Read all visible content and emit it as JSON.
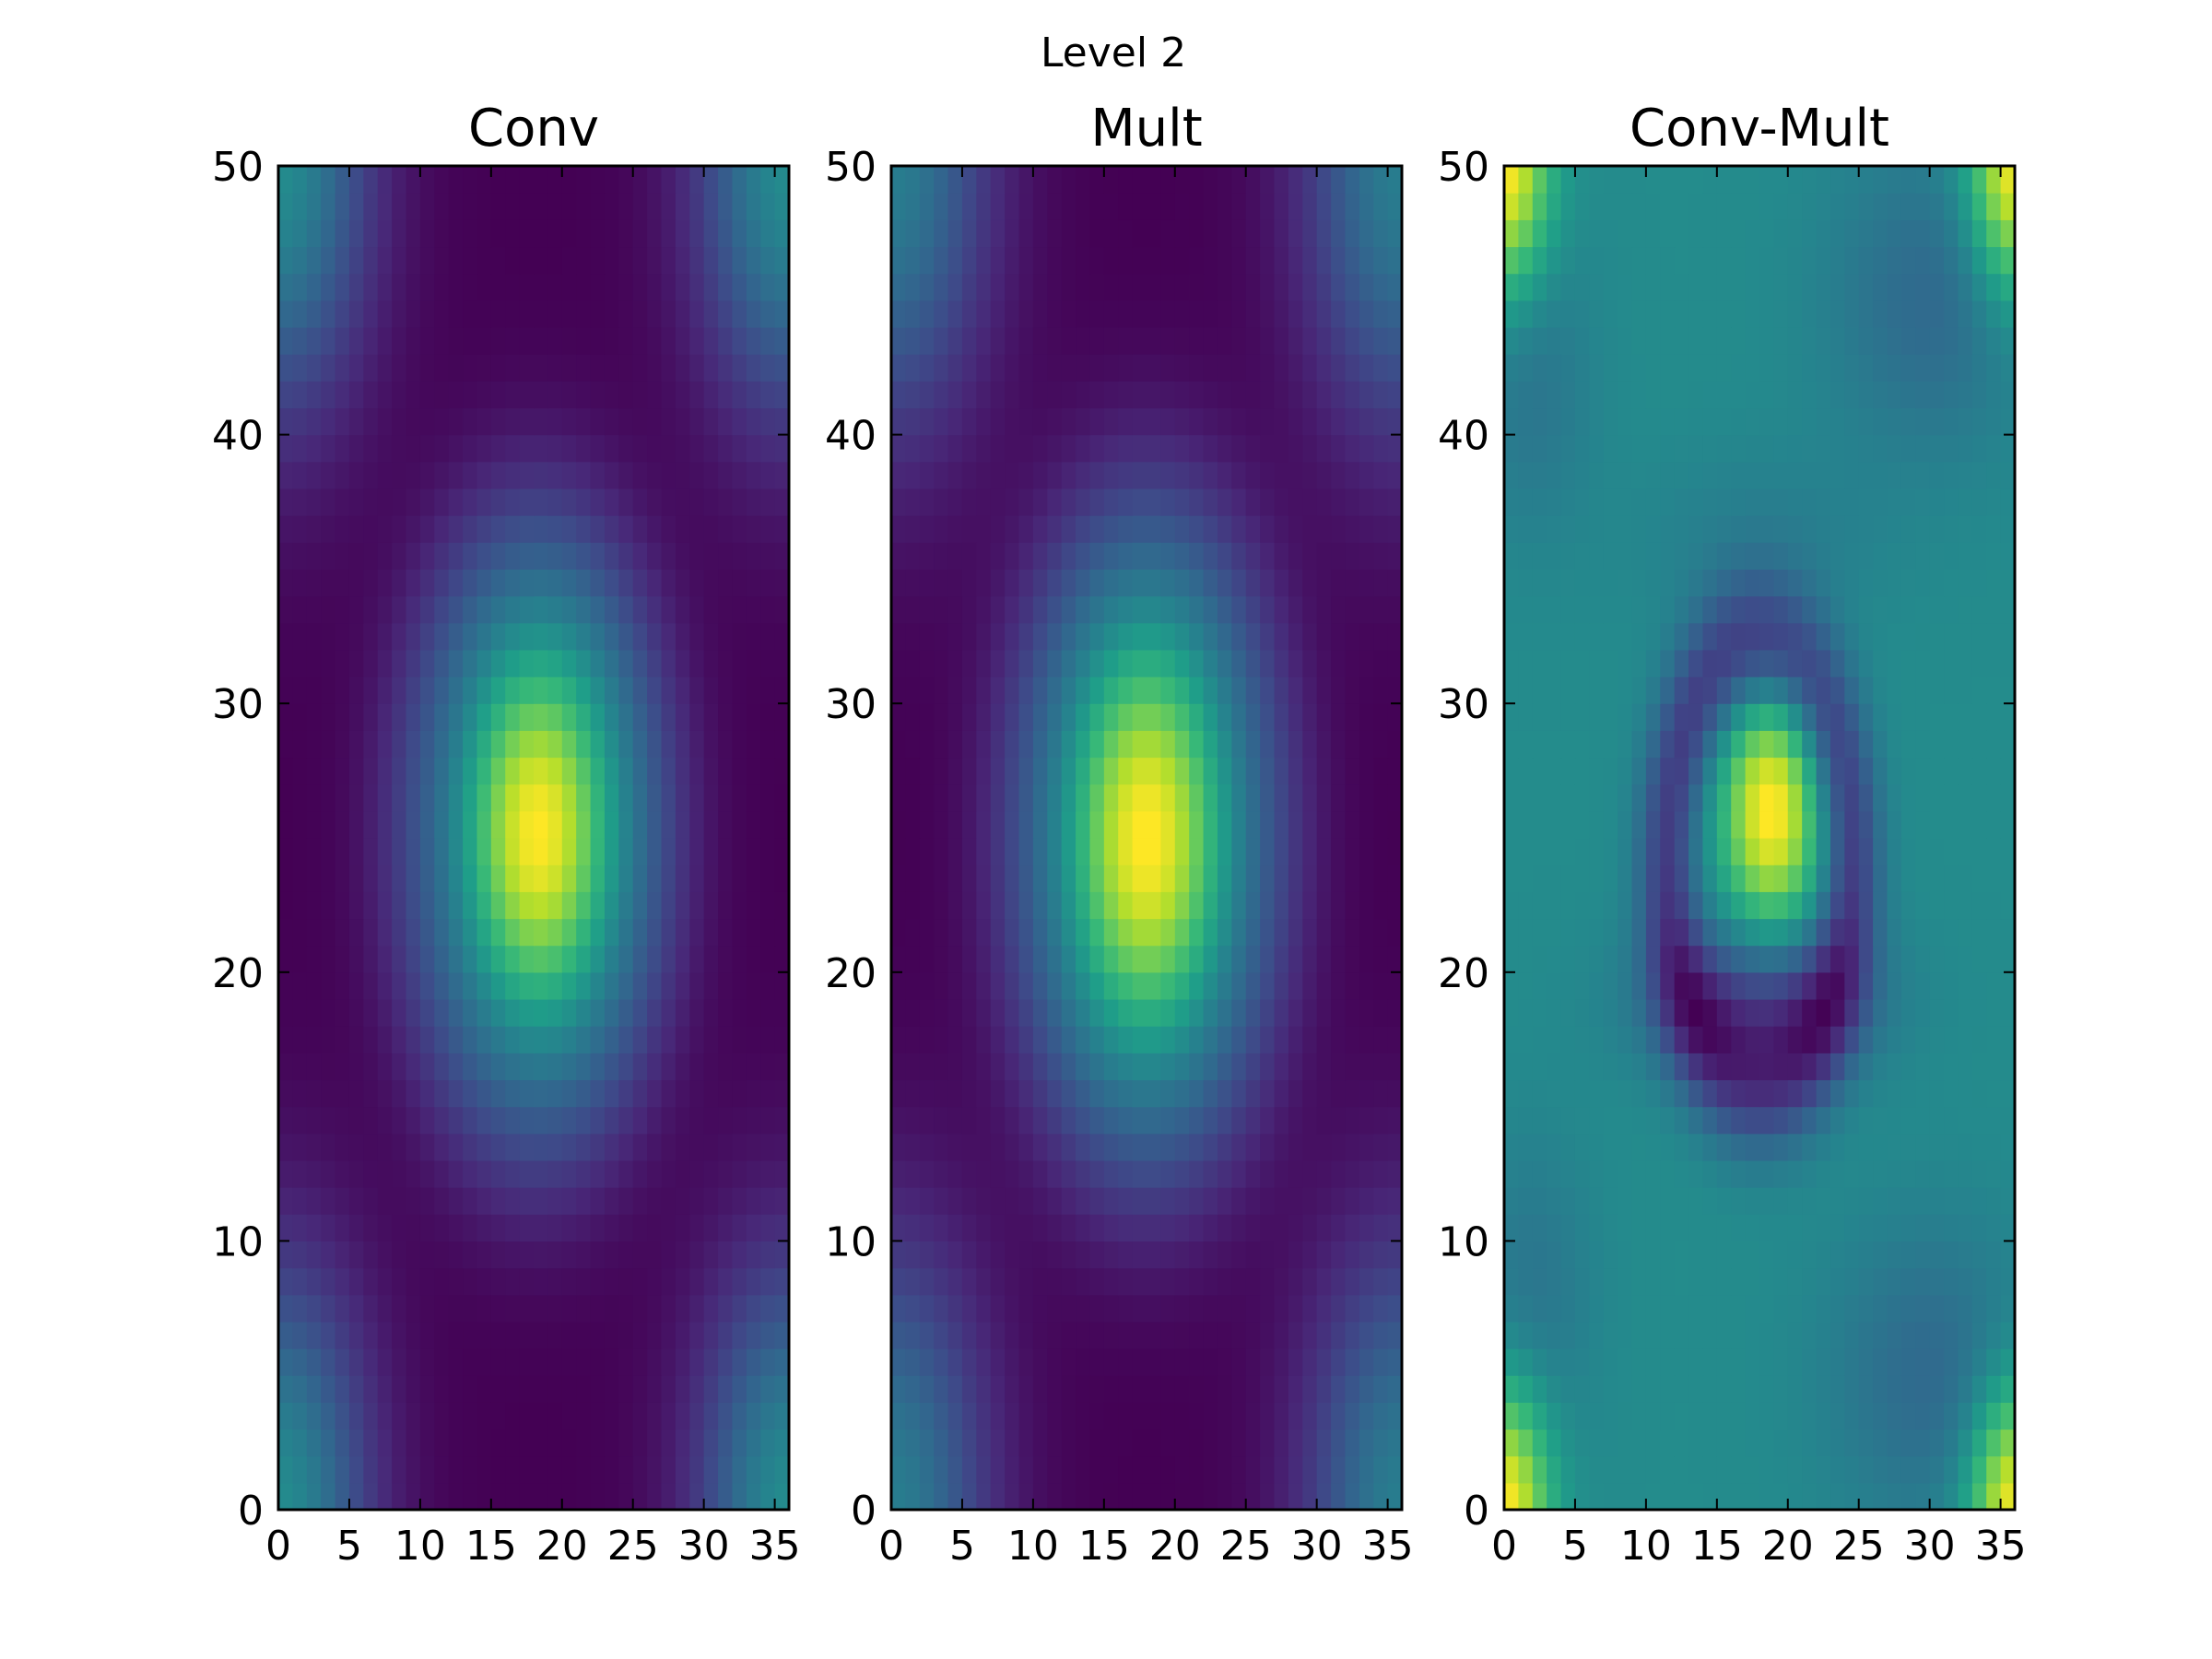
{
  "figure": {
    "suptitle": "Level 2"
  },
  "chart_data": [
    {
      "type": "heatmap",
      "title": "Conv",
      "xlabel": "",
      "ylabel": "",
      "xlim": [
        0,
        36
      ],
      "ylim": [
        0,
        50
      ],
      "xticks": [
        0,
        5,
        10,
        15,
        20,
        25,
        30,
        35
      ],
      "yticks": [
        0,
        10,
        20,
        30,
        40,
        50
      ],
      "colormap": "viridis",
      "grid": false,
      "description_of_values": "Bright peak at x≈18, y≈25; weaker bright corners; dark elsewhere",
      "z_model": "conv"
    },
    {
      "type": "heatmap",
      "title": "Mult",
      "xlabel": "",
      "ylabel": "",
      "xlim": [
        0,
        36
      ],
      "ylim": [
        0,
        50
      ],
      "xticks": [
        0,
        5,
        10,
        15,
        20,
        25,
        30,
        35
      ],
      "yticks": [
        0,
        10,
        20,
        30,
        40,
        50
      ],
      "colormap": "viridis",
      "grid": false,
      "z_model": "mult"
    },
    {
      "type": "heatmap",
      "title": "Conv-Mult",
      "xlabel": "",
      "ylabel": "",
      "xlim": [
        0,
        36
      ],
      "ylim": [
        0,
        50
      ],
      "xticks": [
        0,
        5,
        10,
        15,
        20,
        25,
        30,
        35
      ],
      "yticks": [
        0,
        10,
        20,
        30,
        40,
        50
      ],
      "colormap": "viridis",
      "grid": false,
      "z_model": "diff"
    }
  ],
  "colors": {
    "viridis_stops": [
      "#440154",
      "#482878",
      "#3e4a89",
      "#31688e",
      "#26828e",
      "#1f9e89",
      "#35b779",
      "#6dcd59",
      "#b4de2c",
      "#fde725"
    ]
  }
}
